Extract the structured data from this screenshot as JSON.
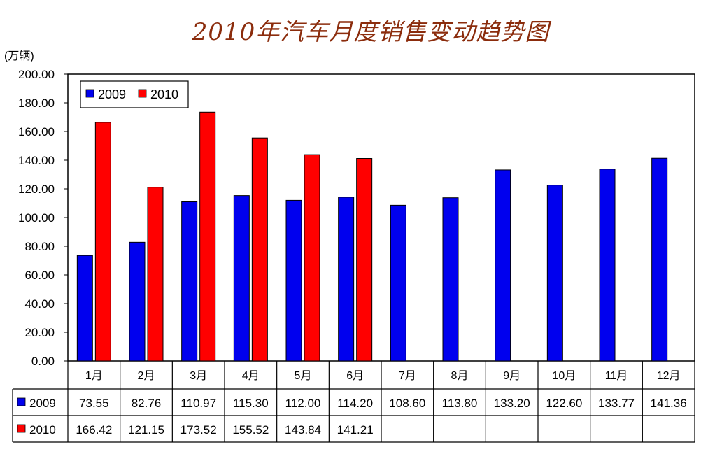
{
  "title": "2010年汽车月度销售变动趋势图",
  "unit": "(万辆)",
  "colors": {
    "2009": "#0000ee",
    "2010": "#ff0000",
    "title": "#8b2c0c"
  },
  "chart_data": {
    "type": "bar",
    "categories": [
      "1月",
      "2月",
      "3月",
      "4月",
      "5月",
      "6月",
      "7月",
      "8月",
      "9月",
      "10月",
      "11月",
      "12月"
    ],
    "series": [
      {
        "name": "2009",
        "values": [
          73.55,
          82.76,
          110.97,
          115.3,
          112.0,
          114.2,
          108.6,
          113.8,
          133.2,
          122.6,
          133.77,
          141.36
        ]
      },
      {
        "name": "2010",
        "values": [
          166.42,
          121.15,
          173.52,
          155.52,
          143.84,
          141.21,
          null,
          null,
          null,
          null,
          null,
          null
        ]
      }
    ],
    "ylim": [
      0,
      200
    ],
    "yticks": [
      "0.00",
      "20.00",
      "40.00",
      "60.00",
      "80.00",
      "100.00",
      "120.00",
      "140.00",
      "160.00",
      "180.00",
      "200.00"
    ],
    "legend": "top-left",
    "grid": false,
    "data_table": {
      "rows": [
        {
          "series": "2009",
          "cells": [
            "73.55",
            "82.76",
            "110.97",
            "115.30",
            "112.00",
            "114.20",
            "108.60",
            "113.80",
            "133.20",
            "122.60",
            "133.77",
            "141.36"
          ]
        },
        {
          "series": "2010",
          "cells": [
            "166.42",
            "121.15",
            "173.52",
            "155.52",
            "143.84",
            "141.21",
            "",
            "",
            "",
            "",
            "",
            ""
          ]
        }
      ]
    }
  }
}
